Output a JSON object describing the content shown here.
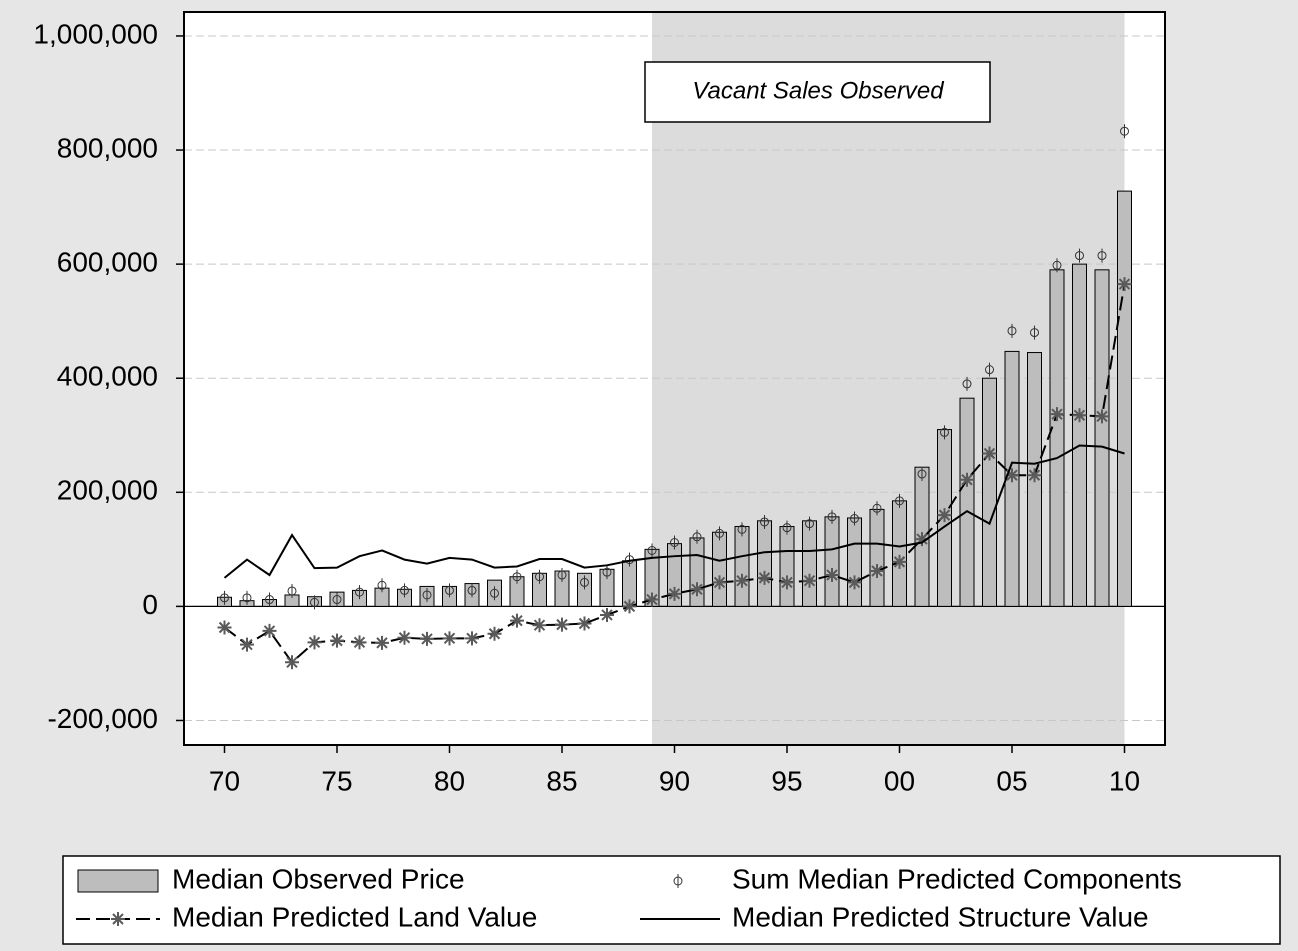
{
  "chart_data": {
    "type": "combo",
    "annotation": "Vacant Sales Observed",
    "shaded_range": [
      1989,
      2010
    ],
    "shade_color": "#dcdcdc",
    "x": [
      1970,
      1971,
      1972,
      1973,
      1974,
      1975,
      1976,
      1977,
      1978,
      1979,
      1980,
      1981,
      1982,
      1983,
      1984,
      1985,
      1986,
      1987,
      1988,
      1989,
      1990,
      1991,
      1992,
      1993,
      1994,
      1995,
      1996,
      1997,
      1998,
      1999,
      2000,
      2001,
      2002,
      2003,
      2004,
      2005,
      2006,
      2007,
      2008,
      2009,
      2010
    ],
    "series": [
      {
        "name": "Median Observed Price",
        "type": "bar",
        "color": "#bdbdbd",
        "values": [
          16000,
          10000,
          12000,
          20000,
          17000,
          25000,
          28000,
          32000,
          30000,
          35000,
          35000,
          40000,
          46000,
          52000,
          58000,
          62000,
          58000,
          65000,
          80000,
          100000,
          110000,
          120000,
          130000,
          140000,
          150000,
          140000,
          150000,
          157000,
          155000,
          170000,
          185000,
          244000,
          310000,
          365000,
          400000,
          447000,
          445000,
          590000,
          600000,
          590000,
          728000
        ]
      },
      {
        "name": "Sum Median Predicted Components",
        "type": "scatter",
        "color": "#333333",
        "values": [
          15000,
          15000,
          12000,
          27000,
          7000,
          12000,
          25000,
          37000,
          28000,
          20000,
          28000,
          28000,
          23000,
          52000,
          52000,
          55000,
          42000,
          60000,
          82000,
          98000,
          112000,
          122000,
          128000,
          135000,
          148000,
          138000,
          145000,
          157000,
          154000,
          172000,
          185000,
          232000,
          305000,
          390000,
          415000,
          483000,
          480000,
          598000,
          615000,
          615000,
          833000
        ]
      },
      {
        "name": "Median Predicted Land Value",
        "type": "line-star",
        "color": "#000000",
        "marker_color": "#5a5a5a",
        "values": [
          -37000,
          -67000,
          -43000,
          -98000,
          -63000,
          -60000,
          -63000,
          -64000,
          -55000,
          -57000,
          -56000,
          -56000,
          -48000,
          -25000,
          -33000,
          -32000,
          -30000,
          -15000,
          0,
          12000,
          22000,
          30000,
          42000,
          45000,
          50000,
          42000,
          45000,
          55000,
          42000,
          62000,
          78000,
          118000,
          160000,
          222000,
          268000,
          230000,
          230000,
          337000,
          335000,
          333000,
          565000
        ]
      },
      {
        "name": "Median Predicted Structure Value",
        "type": "line",
        "color": "#000000",
        "values": [
          50000,
          82000,
          55000,
          125000,
          67000,
          68000,
          88000,
          98000,
          82000,
          75000,
          85000,
          82000,
          68000,
          70000,
          83000,
          83000,
          68000,
          72000,
          80000,
          85000,
          88000,
          90000,
          80000,
          88000,
          95000,
          97000,
          97000,
          100000,
          110000,
          110000,
          105000,
          112000,
          140000,
          167000,
          145000,
          252000,
          250000,
          260000,
          282000,
          280000,
          268000
        ]
      }
    ],
    "xlim": [
      1968.2,
      2011.8
    ],
    "xticks": [
      {
        "value": 1970,
        "label": "70"
      },
      {
        "value": 1975,
        "label": "75"
      },
      {
        "value": 1980,
        "label": "80"
      },
      {
        "value": 1985,
        "label": "85"
      },
      {
        "value": 1990,
        "label": "90"
      },
      {
        "value": 1995,
        "label": "95"
      },
      {
        "value": 2000,
        "label": "00"
      },
      {
        "value": 2005,
        "label": "05"
      },
      {
        "value": 2010,
        "label": "10"
      }
    ],
    "ylim": [
      -243000,
      1042000
    ],
    "yticks": [
      {
        "value": -200000,
        "label": "-200,000"
      },
      0,
      {
        "value": 200000,
        "label": "200,000"
      },
      {
        "value": 400000,
        "label": "400,000"
      },
      {
        "value": 600000,
        "label": "600,000"
      },
      {
        "value": 800000,
        "label": "800,000"
      },
      {
        "value": 1000000,
        "label": "1,000,000"
      }
    ],
    "grid": true
  }
}
